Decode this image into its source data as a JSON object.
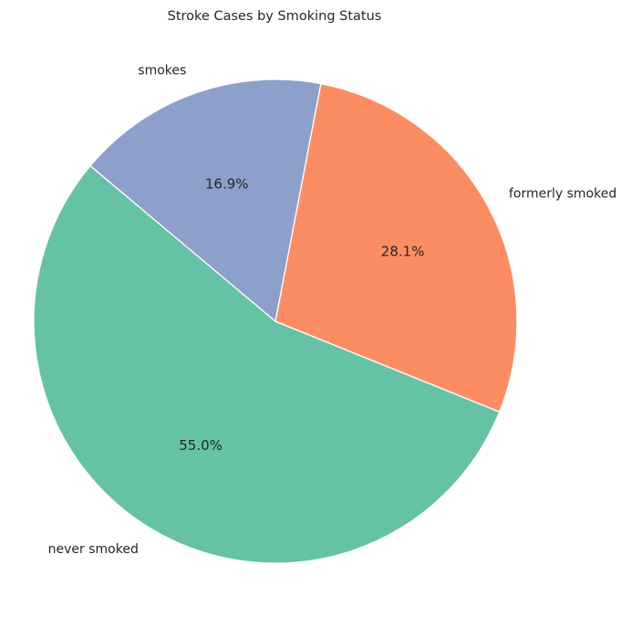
{
  "chart_data": {
    "type": "pie",
    "title": "Stroke Cases by Smoking Status",
    "categories": [
      "never smoked",
      "formerly smoked",
      "smokes"
    ],
    "values": [
      55.0,
      28.1,
      16.9
    ],
    "value_labels": [
      "55.0%",
      "28.1%",
      "16.9%"
    ],
    "colors": [
      "#66c2a5",
      "#fc8d62",
      "#8da0cb"
    ],
    "start_angle_deg": 140,
    "direction": "counterclockwise",
    "legend": "none"
  }
}
